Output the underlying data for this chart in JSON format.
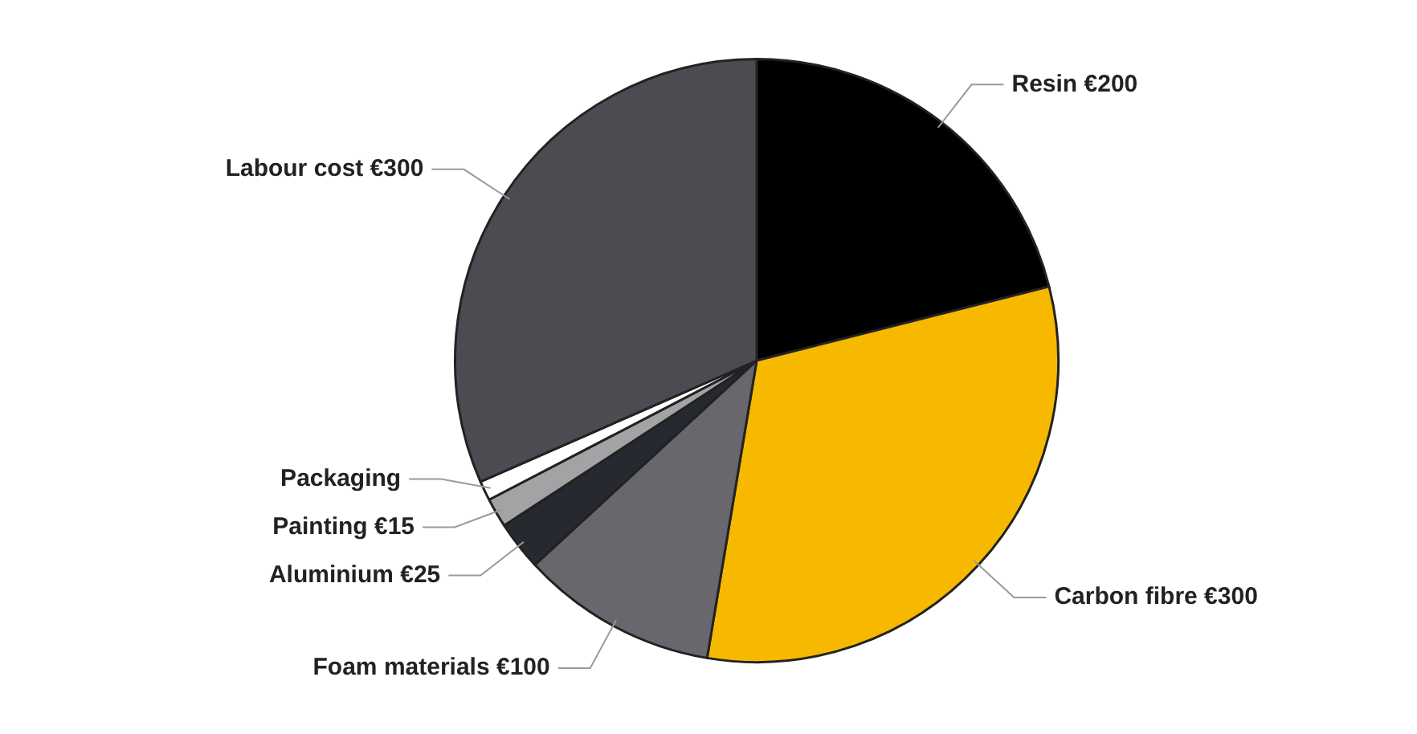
{
  "chart_data": {
    "type": "pie",
    "categories": [
      "Resin",
      "Carbon fibre",
      "Foam materials",
      "Aluminium",
      "Painting",
      "Packaging",
      "Labour cost"
    ],
    "values": [
      200,
      300,
      100,
      25,
      15,
      10,
      300
    ],
    "value_labels": [
      "€200",
      "€300",
      "€100",
      "€25",
      "€15",
      null,
      "€300"
    ],
    "colors": [
      "#000000",
      "#f7b900",
      "#68676d",
      "#26292f",
      "#a3a3a6",
      "#ffffff",
      "#4b4b52"
    ]
  }
}
